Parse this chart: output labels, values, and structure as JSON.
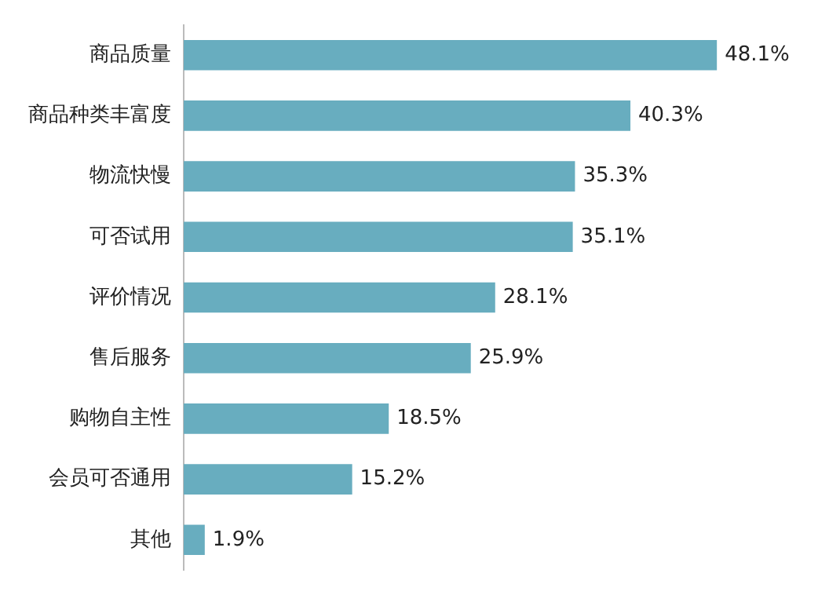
{
  "chart_data": {
    "type": "bar",
    "orientation": "horizontal",
    "categories": [
      "商品质量",
      "商品种类丰富度",
      "物流快慢",
      "可否试用",
      "评价情况",
      "售后服务",
      "购物自主性",
      "会员可否通用",
      "其他"
    ],
    "values": [
      48.1,
      40.3,
      35.3,
      35.1,
      28.1,
      25.9,
      18.5,
      15.2,
      1.9
    ],
    "value_labels": [
      "48.1%",
      "40.3%",
      "35.3%",
      "35.1%",
      "28.1%",
      "25.9%",
      "18.5%",
      "15.2%",
      "1.9%"
    ],
    "color": "#68adbf",
    "tick_labels": "y",
    "grid": false,
    "legend": false
  }
}
